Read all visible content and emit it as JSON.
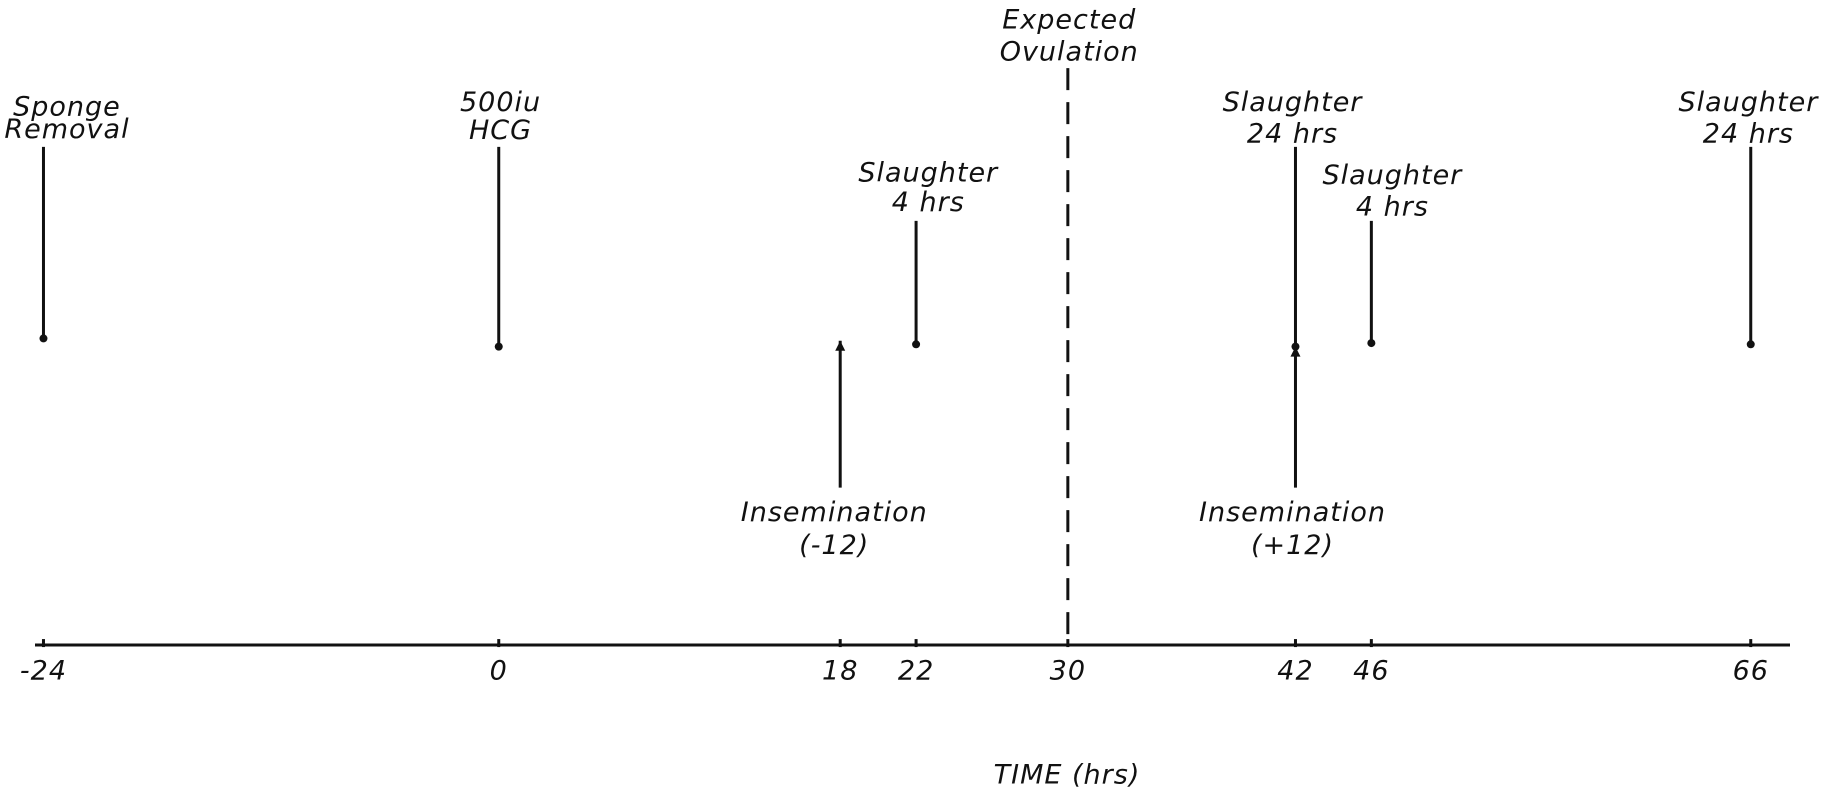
{
  "axis": {
    "label": "TIME (hrs)",
    "ticks": [
      -24,
      0,
      18,
      22,
      30,
      42,
      46,
      66
    ]
  },
  "events": [
    {
      "label": [
        "Sponge",
        "Removal"
      ],
      "time": -24
    },
    {
      "label": [
        "500iu",
        "HCG"
      ],
      "time": 0
    },
    {
      "label": [
        "Slaughter",
        "4 hrs"
      ],
      "time": 22
    },
    {
      "label": [
        "Insemination",
        "(-12)"
      ],
      "time": 18
    },
    {
      "label": [
        "Expected",
        "Ovulation"
      ],
      "time": 30
    },
    {
      "label": [
        "Slaughter",
        "24 hrs"
      ],
      "time": 42
    },
    {
      "label": [
        "Insemination",
        "(+12)"
      ],
      "time": 42
    },
    {
      "label": [
        "Slaughter",
        "4 hrs"
      ],
      "time": 46
    },
    {
      "label": [
        "Slaughter",
        "24 hrs"
      ],
      "time": 66
    }
  ]
}
